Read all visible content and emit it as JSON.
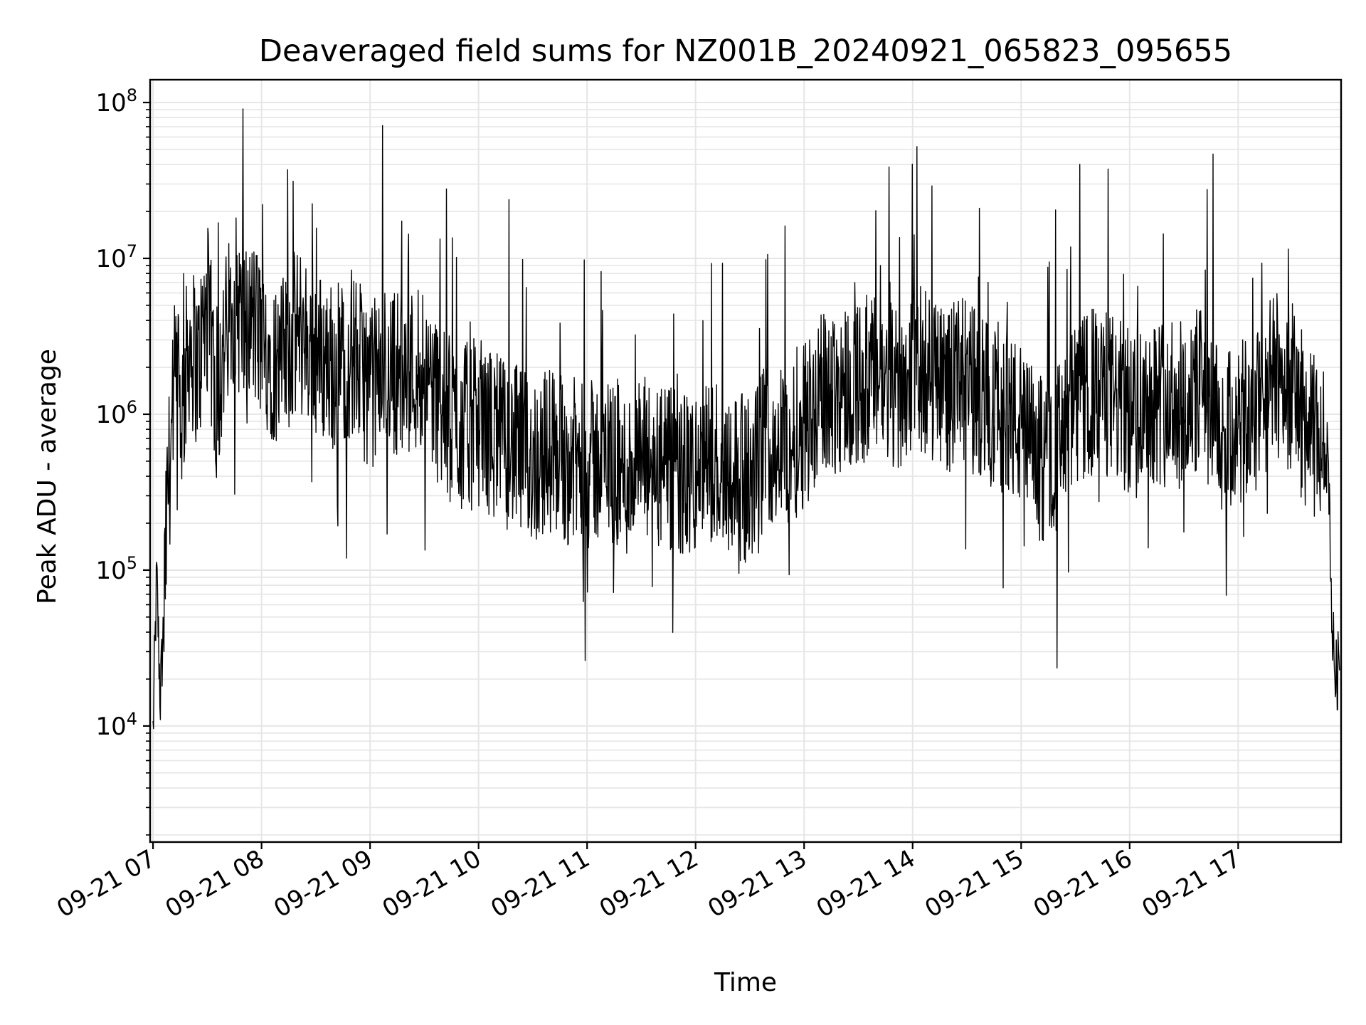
{
  "chart_data": {
    "type": "line",
    "title": "Deaveraged field sums for NZ001B_20240921_065823_095655",
    "xlabel": "Time",
    "ylabel": "Peak ADU - average",
    "yscale": "log",
    "ylim": [
      1800,
      140000000
    ],
    "xlim": [
      "2024-09-21T06:58:23",
      "2024-09-21T17:56:55"
    ],
    "x_tick_labels": [
      "09-21 07",
      "09-21 08",
      "09-21 09",
      "09-21 10",
      "09-21 11",
      "09-21 12",
      "09-21 13",
      "09-21 14",
      "09-21 15",
      "09-21 16",
      "09-21 17"
    ],
    "y_ticks": [
      {
        "base": "10",
        "exp": "4",
        "value": 10000
      },
      {
        "base": "10",
        "exp": "5",
        "value": 100000
      },
      {
        "base": "10",
        "exp": "6",
        "value": 1000000
      },
      {
        "base": "10",
        "exp": "7",
        "value": 10000000
      },
      {
        "base": "10",
        "exp": "8",
        "value": 100000000
      }
    ],
    "grid": true,
    "line_color": "#000000",
    "grid_color": "#e6e6e6",
    "series": [
      {
        "x": [
          "07:00",
          "07:02",
          "07:04",
          "07:06",
          "07:08",
          "07:12",
          "07:16",
          "07:20",
          "07:25",
          "07:30",
          "07:35",
          "07:40",
          "07:45",
          "07:50",
          "07:55",
          "08:00",
          "08:10",
          "08:20",
          "08:30",
          "08:40",
          "08:50",
          "09:00",
          "09:10",
          "09:20",
          "09:30",
          "09:40",
          "09:50",
          "10:00",
          "10:10",
          "10:20",
          "10:30",
          "10:40",
          "10:50",
          "11:00",
          "11:10",
          "11:20",
          "11:30",
          "11:40",
          "11:50",
          "12:00",
          "12:10",
          "12:20",
          "12:30",
          "12:40",
          "12:50",
          "13:00",
          "13:10",
          "13:20",
          "13:30",
          "13:40",
          "13:50",
          "14:00",
          "14:10",
          "14:20",
          "14:30",
          "14:40",
          "14:50",
          "15:00",
          "15:10",
          "15:20",
          "15:30",
          "15:40",
          "15:50",
          "16:00",
          "16:10",
          "16:20",
          "16:30",
          "16:40",
          "16:50",
          "17:00",
          "17:10",
          "17:20",
          "17:30",
          "17:40",
          "17:45",
          "17:50",
          "17:52",
          "17:54",
          "17:56"
        ],
        "y": [
          9000,
          90000,
          15000,
          50000,
          300000,
          1500000,
          1000000,
          3000000,
          2000000,
          5000000,
          1200000,
          3000000,
          6000000,
          3500000,
          4000000,
          3000000,
          2000000,
          3500000,
          2500000,
          2000000,
          2500000,
          1500000,
          2000000,
          1800000,
          2200000,
          1000000,
          800000,
          900000,
          700000,
          600000,
          500000,
          600000,
          500000,
          450000,
          550000,
          400000,
          500000,
          450000,
          400000,
          400000,
          500000,
          450000,
          350000,
          700000,
          600000,
          900000,
          1300000,
          1500000,
          1600000,
          1700000,
          1400000,
          2000000,
          1800000,
          1500000,
          1600000,
          1200000,
          1100000,
          800000,
          500000,
          600000,
          1100000,
          1400000,
          1300000,
          1000000,
          1300000,
          1200000,
          1100000,
          1500000,
          700000,
          800000,
          1000000,
          1800000,
          1500000,
          700000,
          700000,
          500000,
          40000,
          20000,
          25000
        ]
      }
    ]
  }
}
